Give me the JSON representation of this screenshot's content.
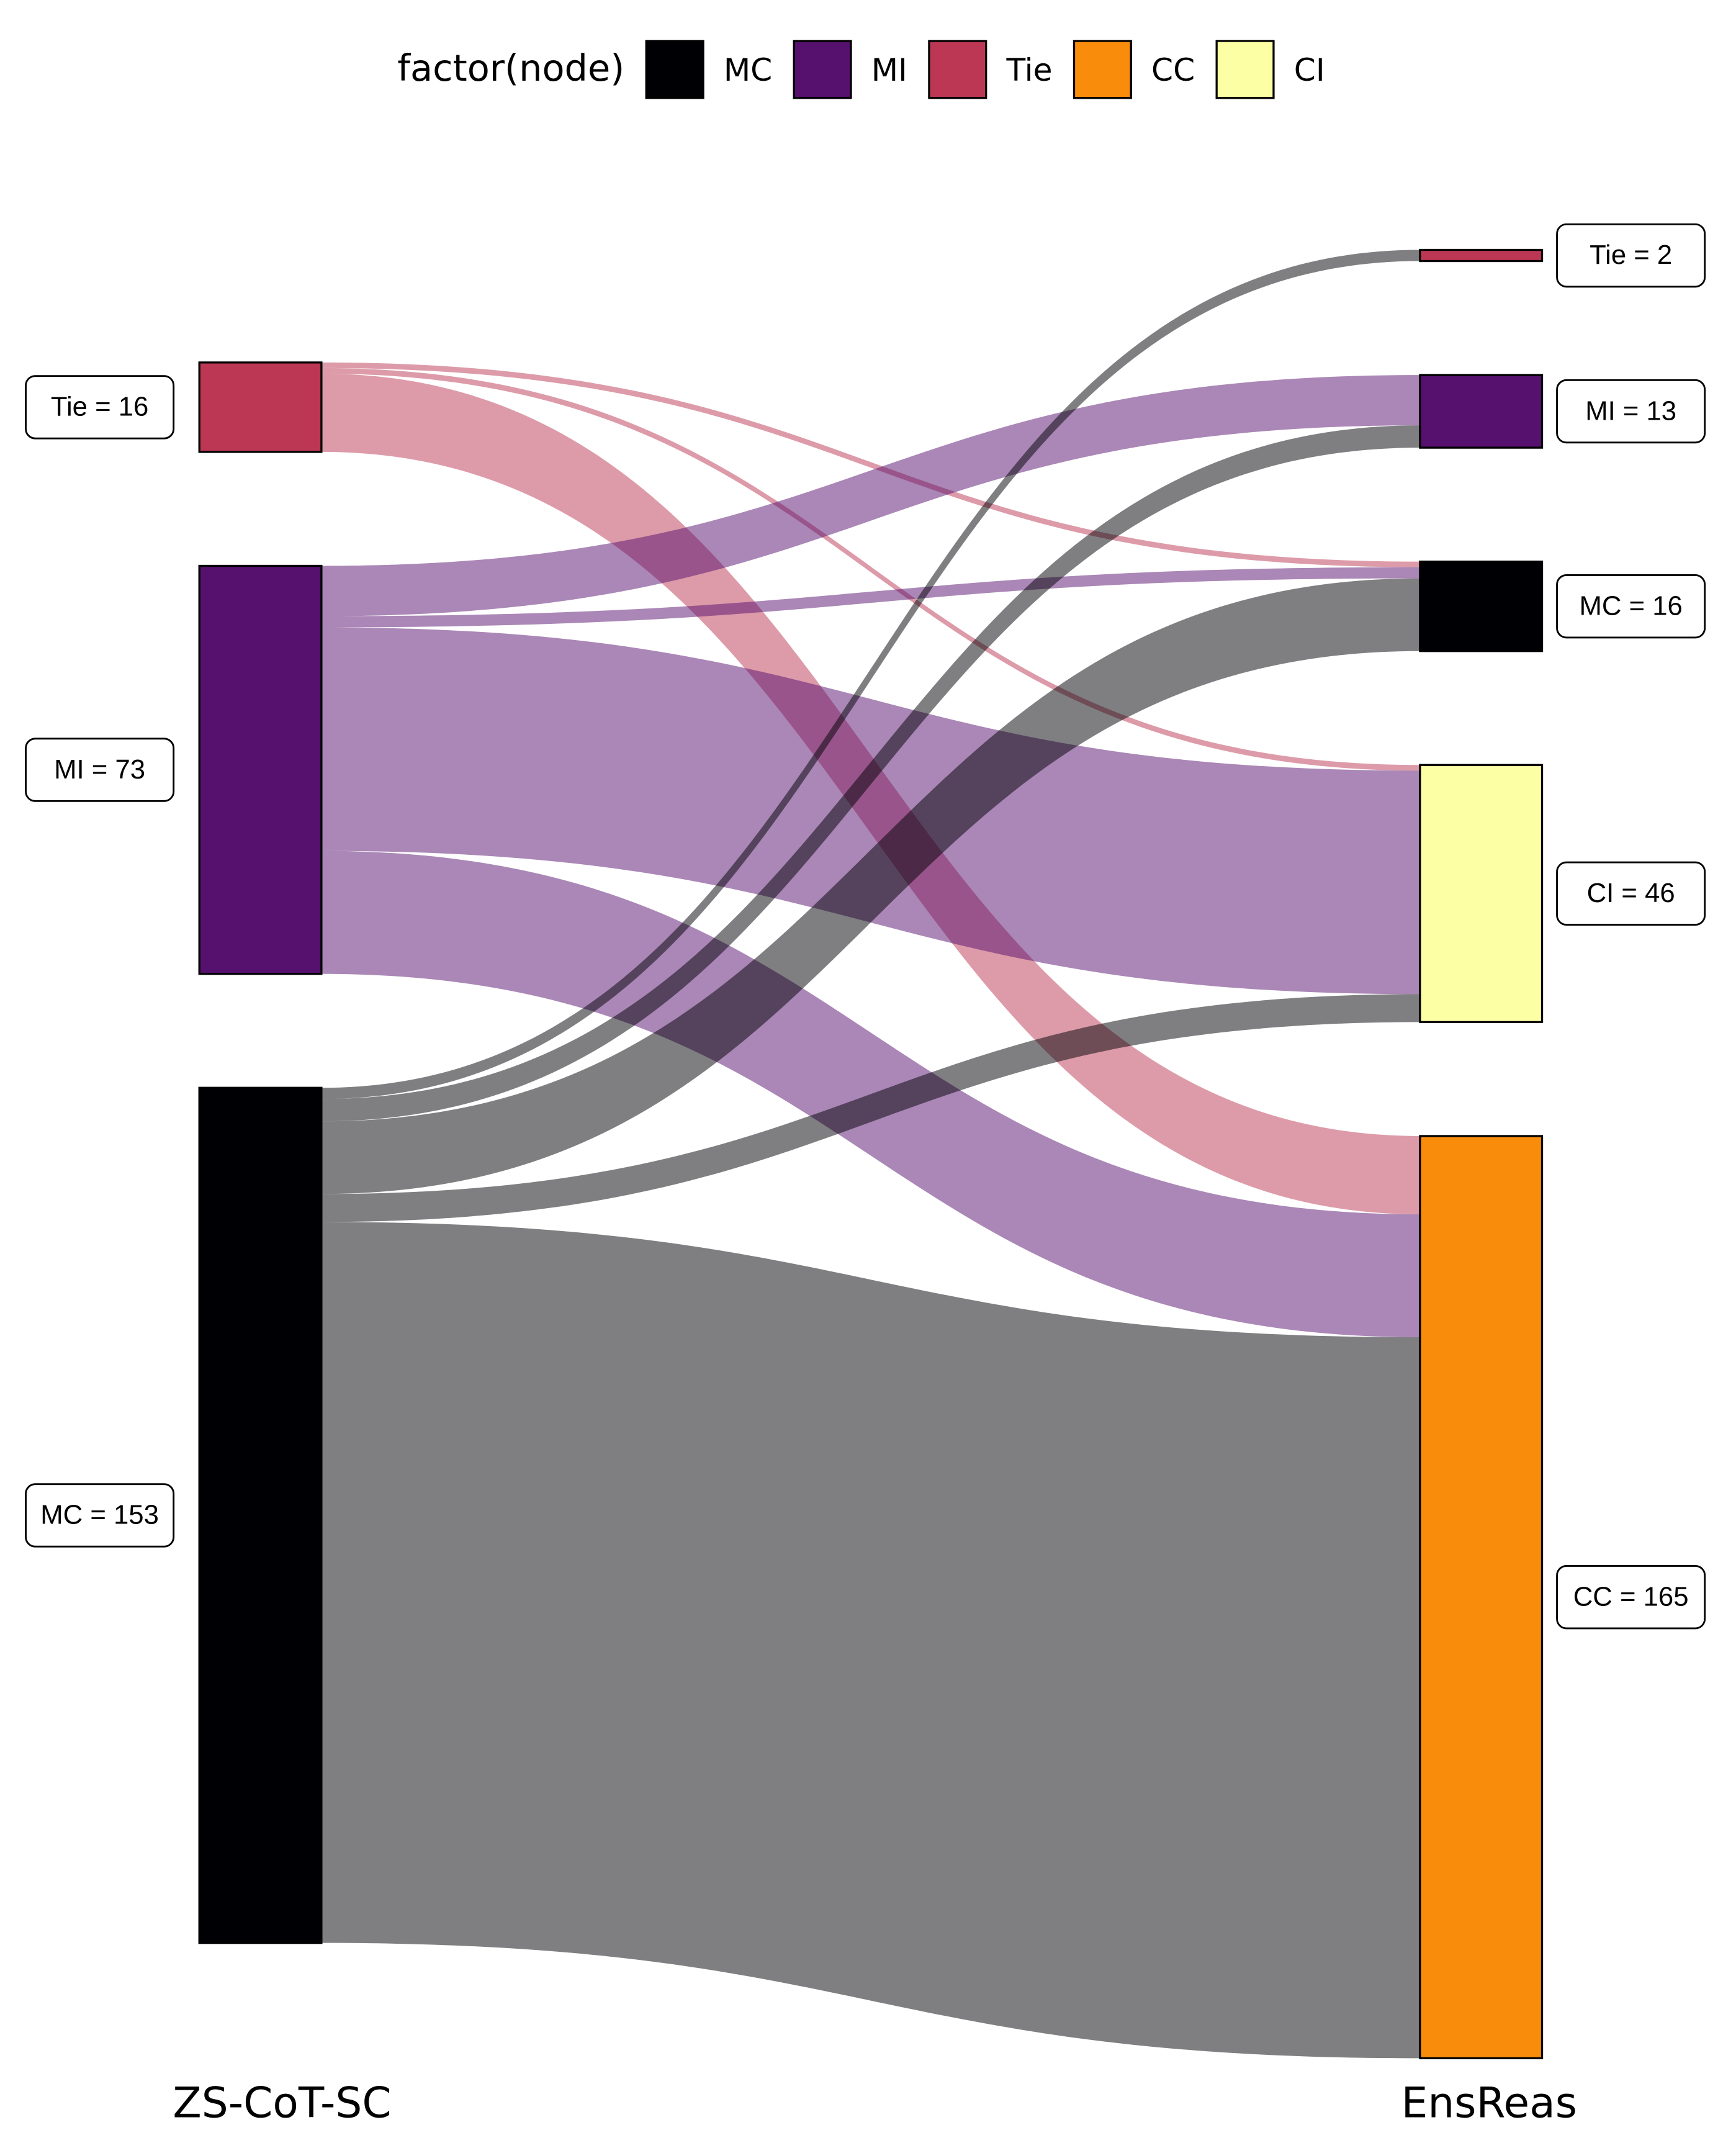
{
  "chart_data": {
    "type": "sankey",
    "legend": {
      "title": "factor(node)",
      "items": [
        {
          "name": "MC",
          "color": "#000004"
        },
        {
          "name": "MI",
          "color": "#56106E"
        },
        {
          "name": "Tie",
          "color": "#BB3754"
        },
        {
          "name": "CC",
          "color": "#F98C0A"
        },
        {
          "name": "CI",
          "color": "#FCFFA4"
        }
      ]
    },
    "columns": [
      {
        "name": "ZS-CoT-SC",
        "nodes": [
          {
            "name": "Tie",
            "value": 16,
            "label": "Tie = 16"
          },
          {
            "name": "MI",
            "value": 73,
            "label": "MI = 73"
          },
          {
            "name": "MC",
            "value": 153,
            "label": "MC = 153"
          }
        ]
      },
      {
        "name": "EnsReas",
        "nodes": [
          {
            "name": "Tie",
            "value": 2,
            "label": "Tie = 2"
          },
          {
            "name": "MI",
            "value": 13,
            "label": "MI = 13"
          },
          {
            "name": "MC",
            "value": 16,
            "label": "MC = 16"
          },
          {
            "name": "CI",
            "value": 46,
            "label": "CI = 46"
          },
          {
            "name": "CC",
            "value": 165,
            "label": "CC = 165"
          }
        ]
      }
    ],
    "links": [
      {
        "source": "Tie",
        "target": "MC",
        "value": 1
      },
      {
        "source": "Tie",
        "target": "CI",
        "value": 1
      },
      {
        "source": "Tie",
        "target": "CC",
        "value": 14
      },
      {
        "source": "MI",
        "target": "MI",
        "value": 9
      },
      {
        "source": "MI",
        "target": "MC",
        "value": 2
      },
      {
        "source": "MI",
        "target": "CI",
        "value": 40
      },
      {
        "source": "MI",
        "target": "CC",
        "value": 22
      },
      {
        "source": "MC",
        "target": "Tie",
        "value": 2
      },
      {
        "source": "MC",
        "target": "MI",
        "value": 4
      },
      {
        "source": "MC",
        "target": "MC",
        "value": 13
      },
      {
        "source": "MC",
        "target": "CI",
        "value": 5
      },
      {
        "source": "MC",
        "target": "CC",
        "value": 129
      }
    ]
  }
}
